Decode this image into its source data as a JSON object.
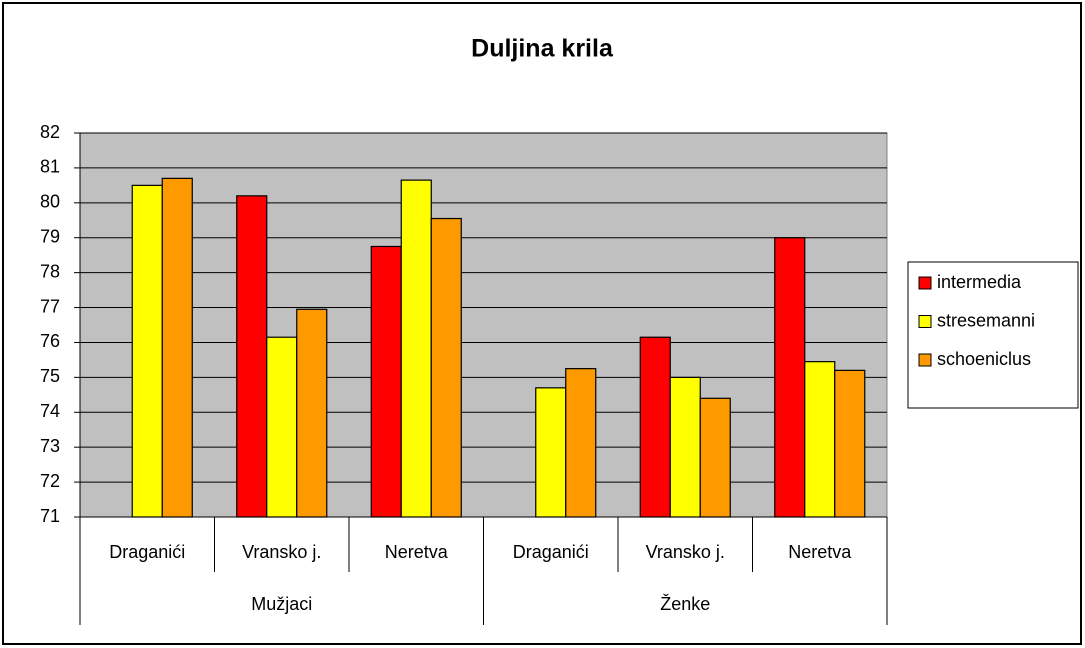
{
  "chart_data": {
    "type": "bar",
    "title": "Duljina krila",
    "categories": [
      "Draganići",
      "Vransko j.",
      "Neretva",
      "Draganići",
      "Vransko j.",
      "Neretva"
    ],
    "groups": [
      "Mužjaci",
      "Ženke"
    ],
    "series": [
      {
        "name": "intermedia",
        "color": "#ff0000",
        "values": [
          null,
          80.2,
          78.75,
          null,
          76.15,
          79.0
        ]
      },
      {
        "name": "stresemanni",
        "color": "#ffff00",
        "values": [
          80.5,
          76.15,
          80.65,
          74.7,
          75.0,
          75.45
        ]
      },
      {
        "name": "schoeniclus",
        "color": "#ff9900",
        "values": [
          80.7,
          76.95,
          79.55,
          75.25,
          74.4,
          75.2
        ]
      }
    ],
    "ylim": [
      71,
      82
    ],
    "yticks": [
      71,
      72,
      73,
      74,
      75,
      76,
      77,
      78,
      79,
      80,
      81,
      82
    ],
    "grid": true,
    "plot_background": "#c0c0c0",
    "legend": "right"
  }
}
